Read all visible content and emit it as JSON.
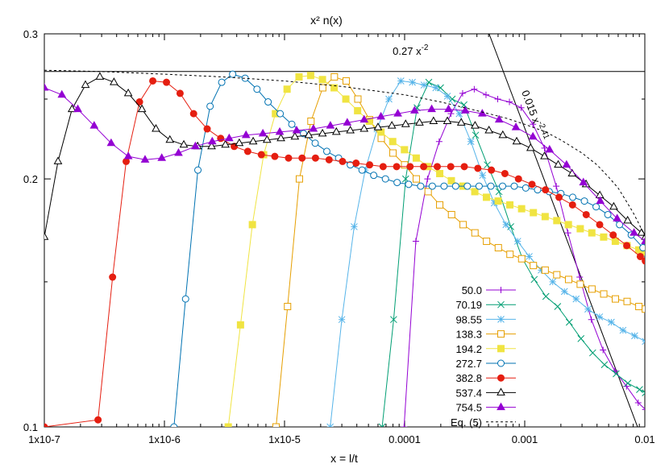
{
  "chart_data": {
    "type": "line",
    "title": "x² n(x)",
    "xlabel": "x = l/t",
    "ylabel": "",
    "xscale": "log",
    "yscale": "log",
    "xlim": [
      1e-07,
      0.01
    ],
    "ylim": [
      0.1,
      0.3
    ],
    "grid": false,
    "legend_position": "bottom-right",
    "x_tick_labels": [
      "1x10-7",
      "1x10-6",
      "1x10-5",
      "0.0001",
      "0.001",
      "0.01"
    ],
    "x_tick_values": [
      1e-07,
      1e-06,
      1e-05,
      0.0001,
      0.001,
      0.01
    ],
    "y_tick_labels": [
      "0.1",
      "0.2",
      "0.3"
    ],
    "y_tick_values": [
      0.1,
      0.2,
      0.3
    ],
    "annotations": [
      {
        "text": "0.27 x",
        "superscript": "-2",
        "x": 0.000112,
        "y": 0.283
      },
      {
        "text": "0.015 x",
        "superscript": "-2.41",
        "x": 0.00094,
        "y": 0.255
      }
    ],
    "reference_lines": [
      {
        "label": "0.27 x^-2",
        "x": [
          1e-07,
          0.01
        ],
        "y": [
          0.27,
          0.27
        ],
        "color": "#000000",
        "style": "solid"
      },
      {
        "label": "0.015 x^-2.41",
        "x": [
          0.000505,
          0.0087
        ],
        "y": [
          0.3,
          0.1
        ],
        "color": "#000000",
        "style": "solid"
      }
    ],
    "series": [
      {
        "name": "50.0",
        "color": "#9400d3",
        "marker": "plus",
        "x": [
          9.9e-05,
          0.000124,
          0.000155,
          0.000194,
          0.000243,
          0.000304,
          0.00038,
          0.000476,
          0.000596,
          0.000746,
          0.000934,
          0.00117,
          0.00146,
          0.00183,
          0.00229,
          0.00287,
          0.00359,
          0.00449,
          0.00563,
          0.00704,
          0.00881,
          0.0101
        ],
        "y": [
          0.1,
          0.168,
          0.2,
          0.222,
          0.24,
          0.254,
          0.257,
          0.253,
          0.25,
          0.248,
          0.244,
          0.233,
          0.218,
          0.196,
          0.172,
          0.152,
          0.135,
          0.124,
          0.117,
          0.112,
          0.107,
          0.105
        ]
      },
      {
        "name": "70.19",
        "color": "#009e73",
        "marker": "x",
        "x": [
          6.5e-05,
          8.1e-05,
          0.000102,
          0.000127,
          0.000159,
          0.000199,
          0.000249,
          0.000312,
          0.00039,
          0.000488,
          0.000611,
          0.000765,
          0.000957,
          0.0012,
          0.0015,
          0.00188,
          0.00235,
          0.00294,
          0.00368,
          0.00461,
          0.00577,
          0.00722,
          0.00904,
          0.0101
        ],
        "y": [
          0.1,
          0.135,
          0.2,
          0.244,
          0.262,
          0.258,
          0.25,
          0.246,
          0.226,
          0.208,
          0.193,
          0.175,
          0.16,
          0.151,
          0.144,
          0.14,
          0.134,
          0.128,
          0.123,
          0.119,
          0.116,
          0.113,
          0.111,
          0.11
        ]
      },
      {
        "name": "98.55",
        "color": "#56b4e9",
        "marker": "star",
        "x": [
          2.4e-05,
          3e-05,
          3.8e-05,
          4.7e-05,
          5.9e-05,
          7.4e-05,
          9.3e-05,
          0.000116,
          0.000145,
          0.000182,
          0.000227,
          0.000285,
          0.000356,
          0.000446,
          0.000558,
          0.000698,
          0.000874,
          0.00109,
          0.00137,
          0.00171,
          0.00214,
          0.00268,
          0.00336,
          0.0042,
          0.00526,
          0.00658,
          0.00823,
          0.0101
        ],
        "y": [
          0.1,
          0.135,
          0.175,
          0.205,
          0.23,
          0.25,
          0.263,
          0.262,
          0.26,
          0.258,
          0.252,
          0.24,
          0.222,
          0.202,
          0.187,
          0.176,
          0.168,
          0.161,
          0.155,
          0.15,
          0.146,
          0.143,
          0.139,
          0.136,
          0.134,
          0.131,
          0.129,
          0.127
        ]
      },
      {
        "name": "138.3",
        "color": "#e69f00",
        "marker": "open-square",
        "x": [
          8.5e-06,
          1.06e-05,
          1.33e-05,
          1.66e-05,
          2.08e-05,
          2.6e-05,
          3.26e-05,
          4.08e-05,
          5.1e-05,
          6.39e-05,
          8e-05,
          0.0001,
          0.000125,
          0.000157,
          0.000196,
          0.000246,
          0.000307,
          0.000385,
          0.000481,
          0.000603,
          0.000754,
          0.000944,
          0.00118,
          0.00148,
          0.00185,
          0.00232,
          0.0029,
          0.00363,
          0.00455,
          0.00569,
          0.00712,
          0.00892,
          0.0101
        ],
        "y": [
          0.1,
          0.14,
          0.2,
          0.235,
          0.258,
          0.266,
          0.263,
          0.25,
          0.236,
          0.224,
          0.215,
          0.208,
          0.2,
          0.193,
          0.186,
          0.181,
          0.176,
          0.172,
          0.168,
          0.165,
          0.162,
          0.16,
          0.157,
          0.155,
          0.153,
          0.151,
          0.149,
          0.147,
          0.145,
          0.143,
          0.142,
          0.14,
          0.139
        ]
      },
      {
        "name": "194.2",
        "color": "#f0e442",
        "marker": "filled-square",
        "x": [
          3.4e-06,
          4.3e-06,
          5.4e-06,
          6.7e-06,
          8.4e-06,
          1.05e-05,
          1.32e-05,
          1.65e-05,
          2.07e-05,
          2.59e-05,
          3.24e-05,
          4.06e-05,
          5.08e-05,
          6.36e-05,
          7.96e-05,
          9.97e-05,
          0.000125,
          0.000156,
          0.000196,
          0.000245,
          0.000306,
          0.000384,
          0.00048,
          0.000601,
          0.000752,
          0.000942,
          0.00118,
          0.00148,
          0.00185,
          0.00231,
          0.0029,
          0.00362,
          0.00454,
          0.00568,
          0.00711,
          0.0089,
          0.0101
        ],
        "y": [
          0.1,
          0.133,
          0.176,
          0.214,
          0.24,
          0.257,
          0.266,
          0.267,
          0.264,
          0.258,
          0.25,
          0.242,
          0.235,
          0.228,
          0.222,
          0.217,
          0.212,
          0.207,
          0.203,
          0.199,
          0.196,
          0.193,
          0.19,
          0.188,
          0.186,
          0.184,
          0.182,
          0.18,
          0.178,
          0.176,
          0.174,
          0.172,
          0.17,
          0.168,
          0.166,
          0.164,
          0.163
        ]
      },
      {
        "name": "272.7",
        "color": "#0072b2",
        "marker": "open-circle",
        "x": [
          1.2e-06,
          1.5e-06,
          1.9e-06,
          2.4e-06,
          3e-06,
          3.7e-06,
          4.7e-06,
          5.9e-06,
          7.3e-06,
          9.2e-06,
          1.15e-05,
          1.44e-05,
          1.8e-05,
          2.25e-05,
          2.82e-05,
          3.53e-05,
          4.42e-05,
          5.53e-05,
          6.92e-05,
          8.66e-05,
          0.000108,
          0.000136,
          0.00017,
          0.000213,
          0.000266,
          0.000333,
          0.000417,
          0.000522,
          0.000654,
          0.000818,
          0.00102,
          0.00128,
          0.0016,
          0.002,
          0.00251,
          0.00314,
          0.00393,
          0.00492,
          0.00616,
          0.00771,
          0.00965
        ],
        "y": [
          0.1,
          0.143,
          0.205,
          0.245,
          0.262,
          0.268,
          0.265,
          0.257,
          0.248,
          0.24,
          0.233,
          0.227,
          0.221,
          0.216,
          0.212,
          0.208,
          0.205,
          0.202,
          0.2,
          0.198,
          0.197,
          0.196,
          0.196,
          0.196,
          0.196,
          0.196,
          0.196,
          0.196,
          0.196,
          0.196,
          0.195,
          0.194,
          0.193,
          0.192,
          0.19,
          0.188,
          0.185,
          0.181,
          0.176,
          0.171,
          0.165
        ]
      },
      {
        "name": "382.8",
        "color": "#e51e10",
        "marker": "filled-circle",
        "x": [
          1e-07,
          2.8e-07,
          3.7e-07,
          4.8e-07,
          6.2e-07,
          8e-07,
          1.04e-06,
          1.35e-06,
          1.75e-06,
          2.27e-06,
          2.94e-06,
          3.81e-06,
          4.94e-06,
          6.41e-06,
          8.3e-06,
          1.08e-05,
          1.4e-05,
          1.81e-05,
          2.35e-05,
          3.04e-05,
          3.94e-05,
          5.11e-05,
          6.62e-05,
          8.58e-05,
          0.000111,
          0.000144,
          0.000187,
          0.000242,
          0.000314,
          0.000407,
          0.000528,
          0.000684,
          0.000887,
          0.00115,
          0.00149,
          0.00193,
          0.0025,
          0.00325,
          0.00421,
          0.00545,
          0.00707,
          0.00917,
          0.0101
        ],
        "y": [
          0.1,
          0.102,
          0.152,
          0.21,
          0.248,
          0.263,
          0.262,
          0.254,
          0.24,
          0.23,
          0.224,
          0.219,
          0.216,
          0.214,
          0.213,
          0.212,
          0.212,
          0.212,
          0.211,
          0.21,
          0.209,
          0.208,
          0.207,
          0.207,
          0.207,
          0.207,
          0.207,
          0.207,
          0.207,
          0.206,
          0.205,
          0.203,
          0.2,
          0.197,
          0.194,
          0.19,
          0.186,
          0.181,
          0.176,
          0.171,
          0.166,
          0.161,
          0.159
        ]
      },
      {
        "name": "537.4",
        "color": "#000000",
        "marker": "open-triangle",
        "x": [
          1e-07,
          1.3e-07,
          1.7e-07,
          2.2e-07,
          2.9e-07,
          3.8e-07,
          5e-07,
          6.5e-07,
          8.5e-07,
          1.11e-06,
          1.45e-06,
          1.89e-06,
          2.47e-06,
          3.22e-06,
          4.2e-06,
          5.48e-06,
          7.15e-06,
          9.33e-06,
          1.22e-05,
          1.59e-05,
          2.07e-05,
          2.7e-05,
          3.53e-05,
          4.6e-05,
          6e-05,
          7.83e-05,
          0.000102,
          0.000133,
          0.000174,
          0.000227,
          0.000296,
          0.000386,
          0.000504,
          0.000657,
          0.000857,
          0.00112,
          0.00146,
          0.0019,
          0.00248,
          0.00324,
          0.00422,
          0.00551,
          0.00719,
          0.00938,
          0.0101
        ],
        "y": [
          0.17,
          0.21,
          0.243,
          0.26,
          0.266,
          0.262,
          0.254,
          0.243,
          0.23,
          0.223,
          0.22,
          0.219,
          0.219,
          0.22,
          0.221,
          0.222,
          0.223,
          0.224,
          0.225,
          0.226,
          0.227,
          0.228,
          0.229,
          0.23,
          0.231,
          0.232,
          0.233,
          0.234,
          0.235,
          0.235,
          0.234,
          0.232,
          0.229,
          0.226,
          0.222,
          0.218,
          0.213,
          0.208,
          0.203,
          0.197,
          0.191,
          0.185,
          0.178,
          0.172,
          0.17
        ]
      },
      {
        "name": "754.5",
        "color": "#9400d3",
        "marker": "filled-triangle",
        "x": [
          1e-07,
          1.4e-07,
          1.9e-07,
          2.6e-07,
          3.6e-07,
          5e-07,
          6.9e-07,
          9.5e-07,
          1.31e-06,
          1.81e-06,
          2.5e-06,
          3.46e-06,
          4.78e-06,
          6.6e-06,
          9.12e-06,
          1.26e-05,
          1.74e-05,
          2.41e-05,
          3.33e-05,
          4.6e-05,
          6.35e-05,
          8.78e-05,
          0.000121,
          0.000168,
          0.000232,
          0.00032,
          0.000443,
          0.000612,
          0.000845,
          0.00117,
          0.00161,
          0.00223,
          0.00308,
          0.00426,
          0.00588,
          0.00813,
          0.0101
        ],
        "y": [
          0.258,
          0.253,
          0.243,
          0.232,
          0.221,
          0.213,
          0.211,
          0.212,
          0.215,
          0.219,
          0.222,
          0.224,
          0.226,
          0.227,
          0.228,
          0.229,
          0.23,
          0.232,
          0.234,
          0.236,
          0.238,
          0.24,
          0.242,
          0.243,
          0.243,
          0.242,
          0.24,
          0.236,
          0.231,
          0.225,
          0.217,
          0.208,
          0.198,
          0.188,
          0.179,
          0.172,
          0.168
        ]
      },
      {
        "name": "Eq. (5)",
        "color": "#000000",
        "marker": "none",
        "style": "dashed",
        "x": [
          1e-07,
          3e-07,
          1e-06,
          3e-06,
          1e-05,
          3e-05,
          0.0001,
          0.0002,
          0.0004,
          0.0007,
          0.001,
          0.0015,
          0.002,
          0.003,
          0.004,
          0.005,
          0.006,
          0.007,
          0.008,
          0.009,
          0.0101
        ],
        "y": [
          0.271,
          0.27,
          0.268,
          0.266,
          0.263,
          0.259,
          0.253,
          0.248,
          0.242,
          0.237,
          0.233,
          0.228,
          0.223,
          0.215,
          0.208,
          0.201,
          0.195,
          0.188,
          0.182,
          0.176,
          0.17
        ]
      }
    ]
  }
}
